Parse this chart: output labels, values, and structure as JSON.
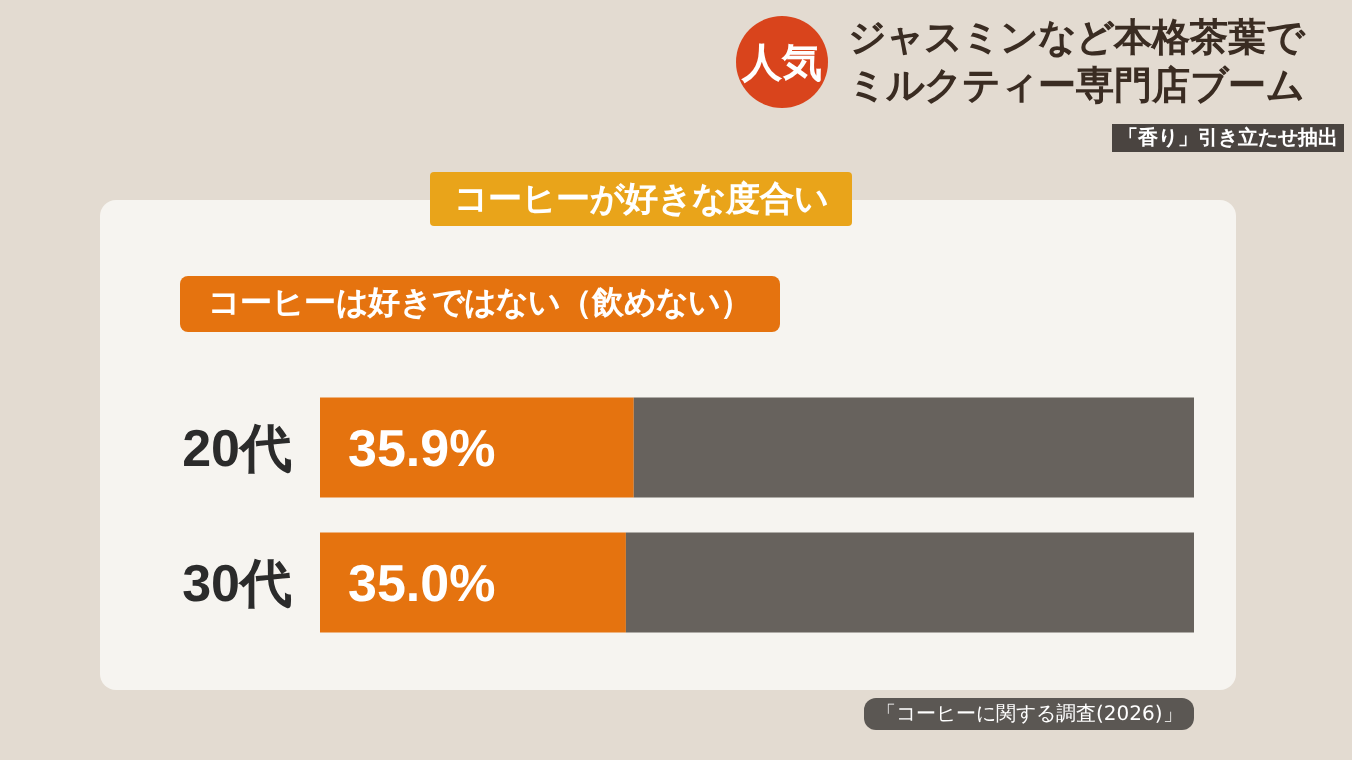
{
  "chart_data": {
    "type": "bar",
    "title": "コーヒーが好きな度合い",
    "orientation": "horizontal",
    "stacked": true,
    "categories": [
      "20代",
      "30代"
    ],
    "series": [
      {
        "name": "コーヒーは好きではない（飲めない）",
        "color": "#e5730f",
        "values": [
          35.9,
          35.0
        ],
        "value_labels": [
          "35.9%",
          "35.0%"
        ]
      },
      {
        "color": "#67625d",
        "values": [
          64.1,
          65.0
        ]
      }
    ],
    "xlim": [
      0,
      100
    ],
    "tick_labels": "y",
    "legend": "top left",
    "annotations": [
      "人気",
      "ジャスミンなど本格茶葉で",
      "ミルクティー専門店ブーム",
      "「香り」引き立たせ抽出",
      "「コーヒーに関する調査(2026)」"
    ]
  }
}
